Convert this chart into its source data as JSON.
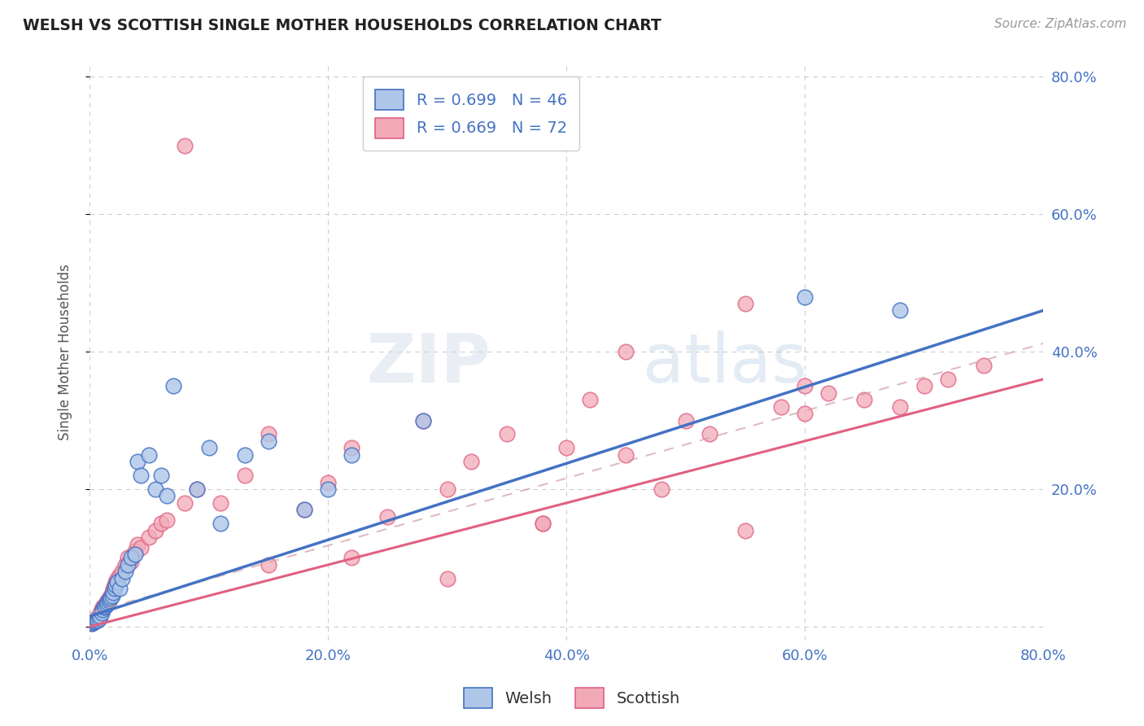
{
  "title": "WELSH VS SCOTTISH SINGLE MOTHER HOUSEHOLDS CORRELATION CHART",
  "source": "Source: ZipAtlas.com",
  "ylabel": "Single Mother Households",
  "xlim": [
    0.0,
    0.8
  ],
  "ylim": [
    -0.02,
    0.82
  ],
  "xtick_vals": [
    0.0,
    0.2,
    0.4,
    0.6,
    0.8
  ],
  "ytick_vals": [
    0.0,
    0.2,
    0.4,
    0.6,
    0.8
  ],
  "xtick_labels": [
    "0.0%",
    "20.0%",
    "40.0%",
    "60.0%",
    "80.0%"
  ],
  "ytick_labels": [
    "",
    "20.0%",
    "40.0%",
    "60.0%",
    "80.0%"
  ],
  "welsh_fill_color": "#aec6e8",
  "welsh_edge_color": "#4472c4",
  "scottish_fill_color": "#f2aab8",
  "scottish_edge_color": "#e06080",
  "welsh_line_color": "#4472c4",
  "scottish_line_color": "#e06080",
  "axis_label_color": "#4472c4",
  "background_color": "#ffffff",
  "grid_color": "#cccccc",
  "watermark_color": "#c8ddf0",
  "welsh_line_start": 0.015,
  "welsh_line_end": 0.46,
  "scottish_line_start": 0.0,
  "scottish_line_end": 0.36,
  "welsh_x": [
    0.002,
    0.003,
    0.004,
    0.005,
    0.006,
    0.007,
    0.008,
    0.009,
    0.01,
    0.011,
    0.012,
    0.013,
    0.014,
    0.015,
    0.016,
    0.017,
    0.018,
    0.019,
    0.02,
    0.021,
    0.022,
    0.023,
    0.025,
    0.027,
    0.03,
    0.032,
    0.035,
    0.038,
    0.04,
    0.043,
    0.05,
    0.055,
    0.06,
    0.065,
    0.07,
    0.09,
    0.1,
    0.11,
    0.13,
    0.15,
    0.18,
    0.2,
    0.22,
    0.28,
    0.6,
    0.68
  ],
  "welsh_y": [
    0.005,
    0.006,
    0.007,
    0.008,
    0.009,
    0.01,
    0.012,
    0.015,
    0.02,
    0.025,
    0.028,
    0.03,
    0.032,
    0.035,
    0.038,
    0.04,
    0.042,
    0.045,
    0.05,
    0.055,
    0.06,
    0.065,
    0.055,
    0.07,
    0.08,
    0.09,
    0.1,
    0.105,
    0.24,
    0.22,
    0.25,
    0.2,
    0.22,
    0.19,
    0.35,
    0.2,
    0.26,
    0.15,
    0.25,
    0.27,
    0.17,
    0.2,
    0.25,
    0.3,
    0.48,
    0.46
  ],
  "scottish_x": [
    0.001,
    0.002,
    0.003,
    0.004,
    0.005,
    0.006,
    0.007,
    0.008,
    0.009,
    0.01,
    0.011,
    0.012,
    0.013,
    0.014,
    0.015,
    0.016,
    0.017,
    0.018,
    0.019,
    0.02,
    0.021,
    0.022,
    0.023,
    0.025,
    0.027,
    0.03,
    0.032,
    0.035,
    0.038,
    0.04,
    0.043,
    0.05,
    0.055,
    0.06,
    0.065,
    0.08,
    0.09,
    0.11,
    0.13,
    0.15,
    0.18,
    0.2,
    0.22,
    0.25,
    0.28,
    0.3,
    0.32,
    0.35,
    0.38,
    0.4,
    0.42,
    0.45,
    0.48,
    0.5,
    0.52,
    0.55,
    0.58,
    0.6,
    0.62,
    0.65,
    0.68,
    0.7,
    0.72,
    0.75,
    0.6,
    0.55,
    0.45,
    0.38,
    0.3,
    0.22,
    0.15,
    0.08
  ],
  "scottish_y": [
    0.005,
    0.006,
    0.007,
    0.008,
    0.009,
    0.01,
    0.012,
    0.015,
    0.02,
    0.025,
    0.028,
    0.03,
    0.032,
    0.035,
    0.038,
    0.04,
    0.042,
    0.045,
    0.05,
    0.055,
    0.06,
    0.065,
    0.07,
    0.075,
    0.08,
    0.09,
    0.1,
    0.095,
    0.11,
    0.12,
    0.115,
    0.13,
    0.14,
    0.15,
    0.155,
    0.18,
    0.2,
    0.18,
    0.22,
    0.28,
    0.17,
    0.21,
    0.26,
    0.16,
    0.3,
    0.2,
    0.24,
    0.28,
    0.15,
    0.26,
    0.33,
    0.25,
    0.2,
    0.3,
    0.28,
    0.14,
    0.32,
    0.31,
    0.34,
    0.33,
    0.32,
    0.35,
    0.36,
    0.38,
    0.35,
    0.47,
    0.4,
    0.15,
    0.07,
    0.1,
    0.09,
    0.7
  ]
}
